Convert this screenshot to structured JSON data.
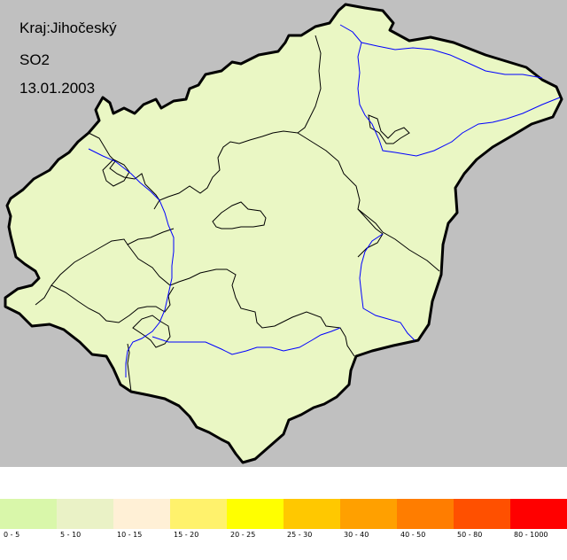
{
  "map": {
    "region": "Kraj:Jihočeský",
    "pollutant": "SO2",
    "date": "13.01.2003",
    "region_fill": "#eaf7c4",
    "background": "#c0c0c0",
    "border_color": "#000000",
    "river_color": "#0000ff"
  },
  "legend": {
    "items": [
      {
        "label": "0 - 5",
        "color": "#d9f7aa"
      },
      {
        "label": "5 - 10",
        "color": "#eaf2c6"
      },
      {
        "label": "10 - 15",
        "color": "#fff0d6"
      },
      {
        "label": "15 - 20",
        "color": "#fff26c"
      },
      {
        "label": "20 - 25",
        "color": "#ffff00"
      },
      {
        "label": "25 - 30",
        "color": "#ffc800"
      },
      {
        "label": "30 - 40",
        "color": "#ffa000"
      },
      {
        "label": "40 - 50",
        "color": "#ff7d00"
      },
      {
        "label": "50 - 80",
        "color": "#ff5000"
      },
      {
        "label": "80 - 1000",
        "color": "#ff0000"
      }
    ]
  }
}
